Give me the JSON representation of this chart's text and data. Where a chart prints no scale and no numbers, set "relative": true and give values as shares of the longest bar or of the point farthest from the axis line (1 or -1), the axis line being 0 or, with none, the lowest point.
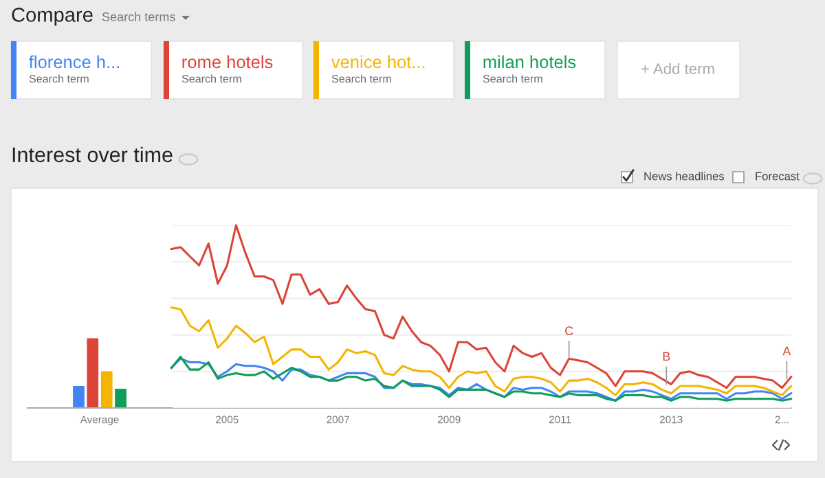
{
  "chart_data": [
    {
      "type": "other",
      "title": "Compare",
      "annotations": [
        "Search terms",
        "Search term",
        "Search term",
        "Search term",
        "Search term",
        "+ Add term"
      ]
    },
    {
      "type": "bar",
      "relative": true,
      "categories": [
        "Average"
      ],
      "legend": "top",
      "series": [
        {
          "name": "florence h...",
          "color": "#4285f4",
          "values": [
            0.32
          ]
        },
        {
          "name": "rome hotels",
          "color": "#db4437",
          "values": [
            1
          ]
        },
        {
          "name": "venice hot...",
          "color": "#f4b400",
          "values": [
            0.53
          ]
        },
        {
          "name": "milan hotels",
          "color": "#0f9d58",
          "values": [
            0.28
          ]
        }
      ]
    },
    {
      "type": "line",
      "relative": true,
      "title": "Interest over time",
      "grid": "y",
      "x": [
        "2004-01",
        "2004-03",
        "2004-05",
        "2004-07",
        "2004-09",
        "2004-11",
        "2005-01",
        "2005-03",
        "2005-05",
        "2005-07",
        "2005-09",
        "2005-11",
        "2006-01",
        "2006-03",
        "2006-05",
        "2006-07",
        "2006-09",
        "2006-11",
        "2007-01",
        "2007-03",
        "2007-05",
        "2007-07",
        "2007-09",
        "2007-11",
        "2008-01",
        "2008-03",
        "2008-05",
        "2008-07",
        "2008-09",
        "2008-11",
        "2009-01",
        "2009-03",
        "2009-05",
        "2009-07",
        "2009-09",
        "2009-11",
        "2010-01",
        "2010-03",
        "2010-05",
        "2010-07",
        "2010-09",
        "2010-11",
        "2011-01",
        "2011-03",
        "2011-05",
        "2011-07",
        "2011-09",
        "2011-11",
        "2012-01",
        "2012-03",
        "2012-05",
        "2012-07",
        "2012-09",
        "2012-11",
        "2013-01",
        "2013-03",
        "2013-05",
        "2013-07",
        "2013-09",
        "2013-11",
        "2014-01",
        "2014-03",
        "2014-05",
        "2014-07",
        "2014-09",
        "2014-11",
        "2015-01",
        "2015-03"
      ],
      "xlim": [
        "2004-01",
        "2015-03"
      ],
      "xticks": [
        {
          "value": "2005-01",
          "label": "2005"
        },
        {
          "value": "2007-01",
          "label": "2007"
        },
        {
          "value": "2009-01",
          "label": "2009"
        },
        {
          "value": "2011-01",
          "label": "2011"
        },
        {
          "value": "2013-01",
          "label": "2013"
        },
        {
          "value": "2015-01",
          "label": "2..."
        }
      ],
      "series": [
        {
          "color": "#4285f4",
          "values": [
            0.22,
            0.27,
            0.25,
            0.25,
            0.24,
            0.17,
            0.2,
            0.24,
            0.23,
            0.23,
            0.22,
            0.2,
            0.15,
            0.21,
            0.21,
            0.18,
            0.17,
            0.15,
            0.17,
            0.19,
            0.19,
            0.19,
            0.17,
            0.11,
            0.11,
            0.15,
            0.13,
            0.13,
            0.12,
            0.11,
            0.07,
            0.11,
            0.1,
            0.13,
            0.1,
            0.08,
            0.06,
            0.11,
            0.1,
            0.11,
            0.11,
            0.09,
            0.06,
            0.09,
            0.09,
            0.09,
            0.08,
            0.06,
            0.04,
            0.09,
            0.09,
            0.1,
            0.09,
            0.07,
            0.05,
            0.08,
            0.08,
            0.08,
            0.08,
            0.08,
            0.05,
            0.08,
            0.08,
            0.09,
            0.09,
            0.08,
            0.05,
            0.08
          ]
        },
        {
          "color": "#db4437",
          "values": [
            0.87,
            0.88,
            0.83,
            0.78,
            0.9,
            0.68,
            0.78,
            1,
            0.85,
            0.72,
            0.72,
            0.7,
            0.57,
            0.73,
            0.73,
            0.62,
            0.65,
            0.57,
            0.58,
            0.67,
            0.6,
            0.54,
            0.53,
            0.4,
            0.38,
            0.5,
            0.42,
            0.36,
            0.34,
            0.29,
            0.2,
            0.36,
            0.36,
            0.32,
            0.33,
            0.25,
            0.2,
            0.34,
            0.3,
            0.28,
            0.3,
            0.22,
            0.18,
            0.27,
            0.26,
            0.25,
            0.22,
            0.19,
            0.12,
            0.2,
            0.2,
            0.2,
            0.19,
            0.16,
            0.13,
            0.19,
            0.2,
            0.18,
            0.17,
            0.14,
            0.11,
            0.17,
            0.17,
            0.17,
            0.16,
            0.15,
            0.11,
            0.17
          ]
        },
        {
          "color": "#f4b400",
          "values": [
            0.55,
            0.54,
            0.45,
            0.42,
            0.48,
            0.33,
            0.38,
            0.45,
            0.41,
            0.36,
            0.39,
            0.24,
            0.28,
            0.32,
            0.32,
            0.28,
            0.28,
            0.21,
            0.25,
            0.32,
            0.3,
            0.31,
            0.29,
            0.19,
            0.18,
            0.23,
            0.21,
            0.2,
            0.2,
            0.17,
            0.11,
            0.17,
            0.2,
            0.19,
            0.2,
            0.12,
            0.09,
            0.16,
            0.17,
            0.17,
            0.16,
            0.14,
            0.09,
            0.15,
            0.15,
            0.16,
            0.14,
            0.11,
            0.07,
            0.13,
            0.13,
            0.14,
            0.13,
            0.1,
            0.08,
            0.12,
            0.12,
            0.12,
            0.11,
            0.1,
            0.08,
            0.12,
            0.12,
            0.12,
            0.11,
            0.09,
            0.07,
            0.12
          ]
        },
        {
          "color": "#0f9d58",
          "values": [
            0.22,
            0.28,
            0.21,
            0.21,
            0.25,
            0.16,
            0.18,
            0.19,
            0.18,
            0.18,
            0.2,
            0.16,
            0.19,
            0.22,
            0.2,
            0.17,
            0.17,
            0.15,
            0.15,
            0.17,
            0.17,
            0.15,
            0.16,
            0.12,
            0.11,
            0.15,
            0.12,
            0.12,
            0.12,
            0.1,
            0.06,
            0.1,
            0.1,
            0.1,
            0.1,
            0.08,
            0.06,
            0.09,
            0.09,
            0.08,
            0.08,
            0.07,
            0.06,
            0.08,
            0.07,
            0.07,
            0.07,
            0.05,
            0.04,
            0.07,
            0.07,
            0.07,
            0.06,
            0.06,
            0.04,
            0.06,
            0.06,
            0.05,
            0.05,
            0.05,
            0.04,
            0.05,
            0.05,
            0.05,
            0.05,
            0.05,
            0.04,
            0.05
          ]
        }
      ],
      "annotations": [
        "News headlines",
        "Forecast",
        {
          "text": "C",
          "x": "2011-03",
          "y": 0.27
        },
        {
          "text": "B",
          "x": "2012-12",
          "y": 0.13
        },
        {
          "text": "A",
          "x": "2015-02",
          "y": 0.16
        }
      ]
    }
  ]
}
